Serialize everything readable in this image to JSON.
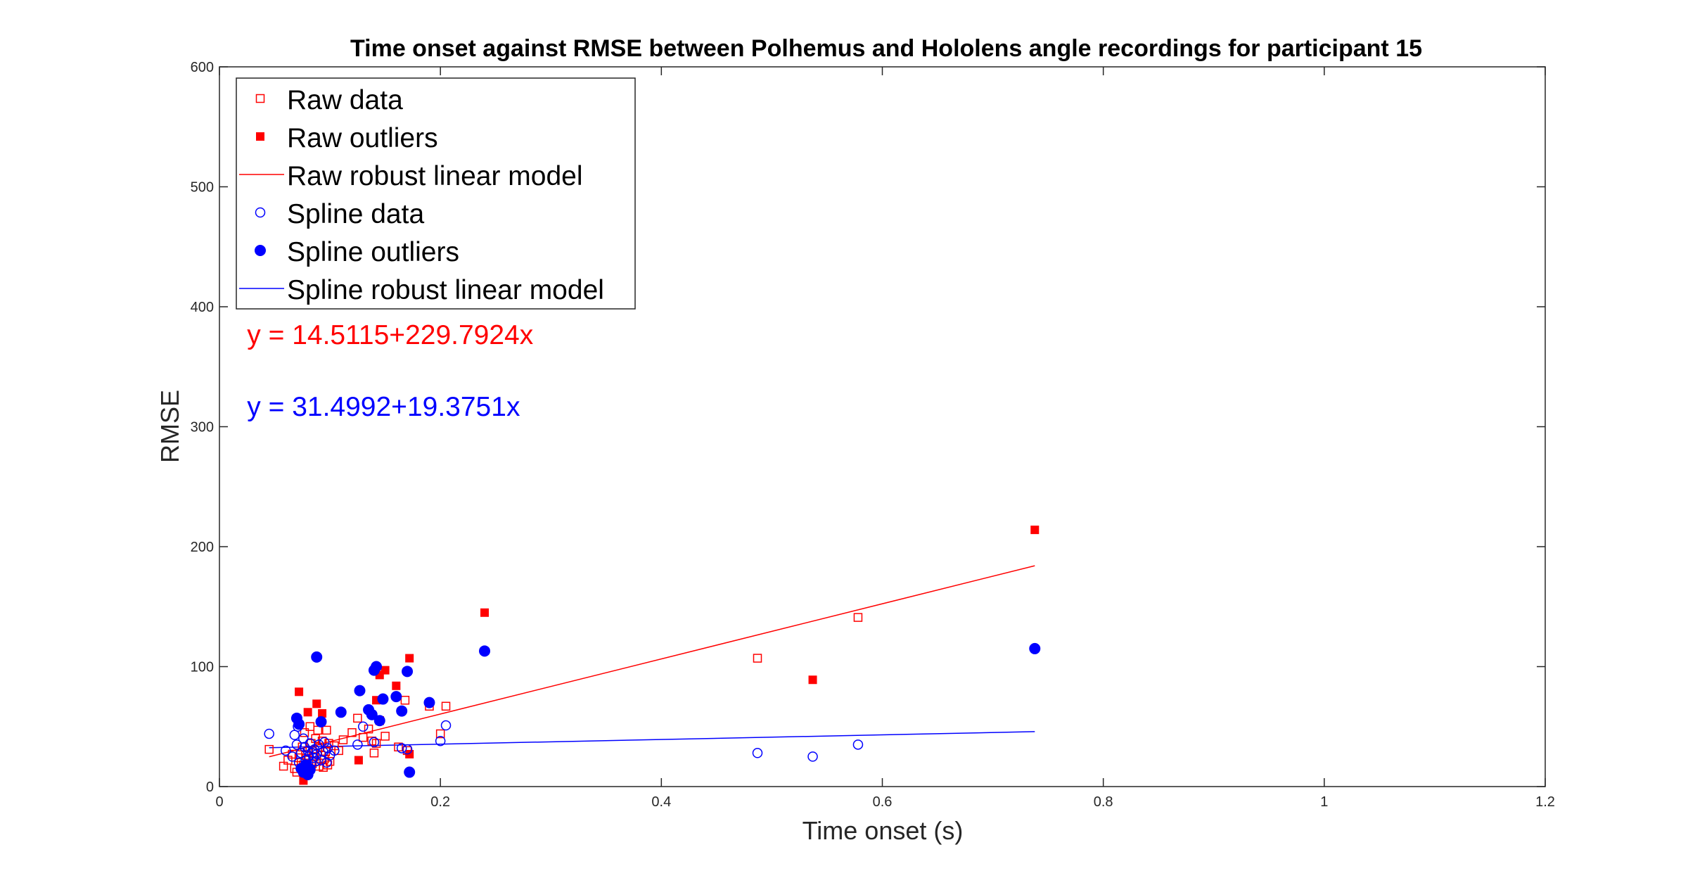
{
  "chart_data": {
    "type": "scatter",
    "title": "Time onset against RMSE between Polhemus and Hololens angle recordings for participant 15",
    "xlabel": "Time onset (s)",
    "ylabel": "RMSE",
    "xlim": [
      0,
      1.2
    ],
    "ylim": [
      0,
      600
    ],
    "xticks": [
      "0",
      "0.2",
      "0.4",
      "0.6",
      "0.8",
      "1",
      "1.2"
    ],
    "yticks": [
      "0",
      "100",
      "200",
      "300",
      "400",
      "500",
      "600"
    ],
    "grid": false,
    "legend_position": "top-left",
    "colors": {
      "raw": "#ff0000",
      "spline": "#0000ff"
    },
    "annotations": [
      {
        "text": "y = 14.5115+229.7924x",
        "color": "#ff0000",
        "x": 0.025,
        "y": 369
      },
      {
        "text": "y = 31.4992+19.3751x",
        "color": "#0000ff",
        "x": 0.025,
        "y": 309
      }
    ],
    "series": [
      {
        "name": "Raw data",
        "marker": "open-square",
        "color": "#ff0000",
        "points": [
          [
            0.045,
            31
          ],
          [
            0.058,
            17
          ],
          [
            0.062,
            22
          ],
          [
            0.066,
            27
          ],
          [
            0.068,
            15
          ],
          [
            0.07,
            12
          ],
          [
            0.072,
            24
          ],
          [
            0.074,
            20
          ],
          [
            0.075,
            33
          ],
          [
            0.076,
            18
          ],
          [
            0.077,
            45
          ],
          [
            0.078,
            26
          ],
          [
            0.079,
            14
          ],
          [
            0.08,
            30
          ],
          [
            0.081,
            22
          ],
          [
            0.082,
            50
          ],
          [
            0.083,
            36
          ],
          [
            0.084,
            19
          ],
          [
            0.085,
            28
          ],
          [
            0.086,
            25
          ],
          [
            0.087,
            40
          ],
          [
            0.088,
            21
          ],
          [
            0.089,
            47
          ],
          [
            0.09,
            17
          ],
          [
            0.091,
            33
          ],
          [
            0.092,
            26
          ],
          [
            0.093,
            38
          ],
          [
            0.094,
            16
          ],
          [
            0.095,
            23
          ],
          [
            0.096,
            29
          ],
          [
            0.097,
            47
          ],
          [
            0.098,
            18
          ],
          [
            0.099,
            36
          ],
          [
            0.1,
            21
          ],
          [
            0.104,
            34
          ],
          [
            0.108,
            30
          ],
          [
            0.112,
            39
          ],
          [
            0.12,
            45
          ],
          [
            0.125,
            57
          ],
          [
            0.13,
            41
          ],
          [
            0.135,
            48
          ],
          [
            0.138,
            38
          ],
          [
            0.14,
            28
          ],
          [
            0.142,
            36
          ],
          [
            0.145,
            55
          ],
          [
            0.15,
            42
          ],
          [
            0.162,
            33
          ],
          [
            0.168,
            72
          ],
          [
            0.17,
            30
          ],
          [
            0.19,
            67
          ],
          [
            0.2,
            44
          ],
          [
            0.205,
            67
          ],
          [
            0.487,
            107
          ],
          [
            0.578,
            141
          ]
        ]
      },
      {
        "name": "Raw outliers",
        "marker": "filled-square",
        "color": "#ff0000",
        "points": [
          [
            0.072,
            79
          ],
          [
            0.076,
            5
          ],
          [
            0.08,
            62
          ],
          [
            0.088,
            69
          ],
          [
            0.093,
            61
          ],
          [
            0.126,
            22
          ],
          [
            0.142,
            72
          ],
          [
            0.145,
            93
          ],
          [
            0.15,
            97
          ],
          [
            0.16,
            84
          ],
          [
            0.172,
            107
          ],
          [
            0.172,
            27
          ],
          [
            0.24,
            145
          ],
          [
            0.537,
            89
          ],
          [
            0.738,
            214
          ]
        ]
      },
      {
        "name": "Raw robust linear model",
        "marker": "line",
        "color": "#ff0000",
        "points": [
          [
            0.045,
            24.85
          ],
          [
            0.738,
            184.1
          ]
        ]
      },
      {
        "name": "Spline data",
        "marker": "open-circle",
        "color": "#0000ff",
        "points": [
          [
            0.045,
            44
          ],
          [
            0.06,
            30
          ],
          [
            0.066,
            25
          ],
          [
            0.068,
            43
          ],
          [
            0.07,
            35
          ],
          [
            0.071,
            50
          ],
          [
            0.072,
            20
          ],
          [
            0.074,
            28
          ],
          [
            0.075,
            15
          ],
          [
            0.076,
            40
          ],
          [
            0.077,
            33
          ],
          [
            0.078,
            22
          ],
          [
            0.079,
            18
          ],
          [
            0.08,
            30
          ],
          [
            0.081,
            25
          ],
          [
            0.082,
            36
          ],
          [
            0.083,
            19
          ],
          [
            0.084,
            28
          ],
          [
            0.085,
            24
          ],
          [
            0.086,
            31
          ],
          [
            0.087,
            21
          ],
          [
            0.088,
            27
          ],
          [
            0.09,
            35
          ],
          [
            0.092,
            22
          ],
          [
            0.094,
            29
          ],
          [
            0.095,
            37
          ],
          [
            0.097,
            20
          ],
          [
            0.098,
            32
          ],
          [
            0.1,
            26
          ],
          [
            0.104,
            30
          ],
          [
            0.125,
            35
          ],
          [
            0.13,
            50
          ],
          [
            0.14,
            37
          ],
          [
            0.165,
            32
          ],
          [
            0.17,
            31
          ],
          [
            0.2,
            38
          ],
          [
            0.205,
            51
          ],
          [
            0.487,
            28
          ],
          [
            0.537,
            25
          ],
          [
            0.578,
            35
          ]
        ]
      },
      {
        "name": "Spline outliers",
        "marker": "filled-circle",
        "color": "#0000ff",
        "points": [
          [
            0.07,
            57
          ],
          [
            0.072,
            52
          ],
          [
            0.074,
            15
          ],
          [
            0.076,
            12
          ],
          [
            0.078,
            18
          ],
          [
            0.08,
            10
          ],
          [
            0.082,
            14
          ],
          [
            0.088,
            108
          ],
          [
            0.092,
            54
          ],
          [
            0.11,
            62
          ],
          [
            0.127,
            80
          ],
          [
            0.135,
            64
          ],
          [
            0.138,
            60
          ],
          [
            0.14,
            97
          ],
          [
            0.142,
            100
          ],
          [
            0.145,
            55
          ],
          [
            0.148,
            73
          ],
          [
            0.16,
            75
          ],
          [
            0.165,
            63
          ],
          [
            0.17,
            96
          ],
          [
            0.172,
            12
          ],
          [
            0.19,
            70
          ],
          [
            0.24,
            113
          ],
          [
            0.738,
            115
          ]
        ]
      },
      {
        "name": "Spline robust linear model",
        "marker": "line",
        "color": "#0000ff",
        "points": [
          [
            0.045,
            32.37
          ],
          [
            0.738,
            45.8
          ]
        ]
      }
    ]
  }
}
